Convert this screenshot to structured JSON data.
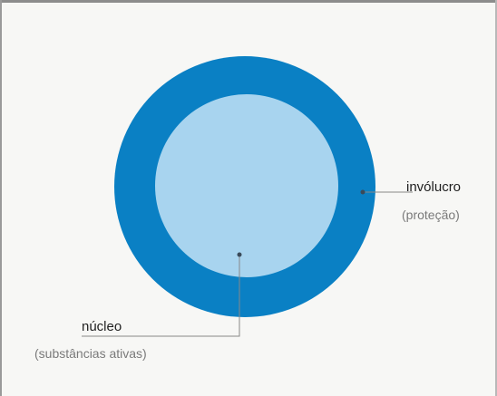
{
  "diagram": {
    "colors": {
      "outer_ring": "#0a80c4",
      "inner_core": "#a8d4ef",
      "background": "#f7f7f5",
      "leader_line": "#888888",
      "marker": "#3a4a5a"
    },
    "outer": {
      "label": "invólucro",
      "sublabel": "(proteção)"
    },
    "inner": {
      "label": "núcleo",
      "sublabel": "(substâncias ativas)"
    }
  }
}
